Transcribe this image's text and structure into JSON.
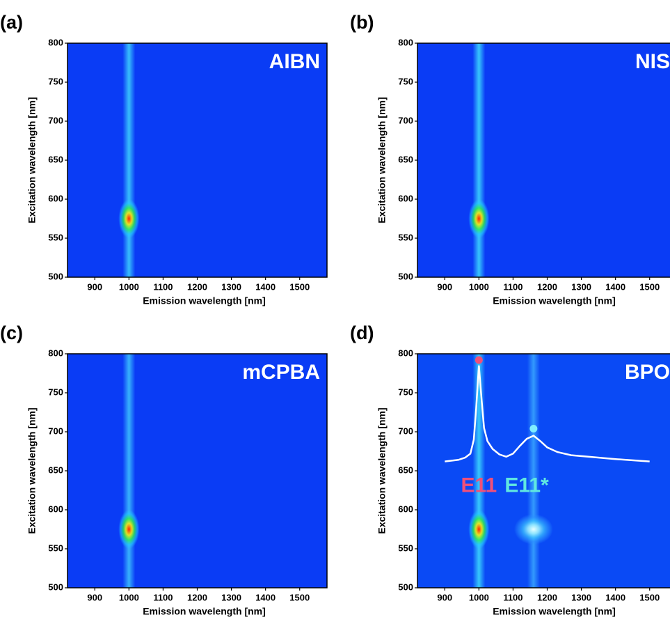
{
  "chart_data": [
    {
      "type": "heatmap",
      "panel_label": "(a)",
      "title": "AIBN",
      "xlabel": "Emission wavelength [nm]",
      "ylabel": "Excitation wavelength [nm]",
      "xlim": [
        820,
        1580
      ],
      "ylim": [
        500,
        800
      ],
      "xticks": [
        900,
        1000,
        1100,
        1200,
        1300,
        1400,
        1500
      ],
      "yticks": [
        500,
        550,
        600,
        650,
        700,
        750,
        800
      ],
      "background": "#0a3cf5",
      "streaks": [
        {
          "x": 1000,
          "color": "#3fd6ff"
        }
      ],
      "peaks": [
        {
          "x": 1000,
          "y": 575,
          "colors": [
            "#ff1a00",
            "#ffee00",
            "#30ff30",
            "#20d0ff"
          ]
        }
      ]
    },
    {
      "type": "heatmap",
      "panel_label": "(b)",
      "title": "NIS",
      "xlabel": "Emission wavelength [nm]",
      "ylabel": "Excitation wavelength [nm]",
      "xlim": [
        820,
        1580
      ],
      "ylim": [
        500,
        800
      ],
      "xticks": [
        900,
        1000,
        1100,
        1200,
        1300,
        1400,
        1500
      ],
      "yticks": [
        500,
        550,
        600,
        650,
        700,
        750,
        800
      ],
      "background": "#0a3cf5",
      "streaks": [
        {
          "x": 1000,
          "color": "#3fe0ff"
        }
      ],
      "peaks": [
        {
          "x": 1000,
          "y": 575,
          "colors": [
            "#ff1a00",
            "#ffee00",
            "#30ff30",
            "#20d0ff"
          ]
        }
      ]
    },
    {
      "type": "heatmap",
      "panel_label": "(c)",
      "title": "mCPBA",
      "xlabel": "Emission wavelength [nm]",
      "ylabel": "Excitation wavelength [nm]",
      "xlim": [
        820,
        1580
      ],
      "ylim": [
        500,
        800
      ],
      "xticks": [
        900,
        1000,
        1100,
        1200,
        1300,
        1400,
        1500
      ],
      "yticks": [
        500,
        550,
        600,
        650,
        700,
        750,
        800
      ],
      "background": "#0a3cf5",
      "streaks": [
        {
          "x": 1000,
          "color": "#3fc8ff"
        }
      ],
      "peaks": [
        {
          "x": 1000,
          "y": 575,
          "colors": [
            "#ff1a00",
            "#ffee00",
            "#30ff30",
            "#20d0ff"
          ]
        }
      ]
    },
    {
      "type": "heatmap",
      "panel_label": "(d)",
      "title": "BPO",
      "xlabel": "Emission wavelength [nm]",
      "ylabel": "Excitation wavelength [nm]",
      "xlim": [
        820,
        1580
      ],
      "ylim": [
        500,
        800
      ],
      "xticks": [
        900,
        1000,
        1100,
        1200,
        1300,
        1400,
        1500
      ],
      "yticks": [
        500,
        550,
        600,
        650,
        700,
        750,
        800
      ],
      "background": "#0a4af5",
      "streaks": [
        {
          "x": 1000,
          "color": "#3fe0ff"
        },
        {
          "x": 1160,
          "color": "#3aa8ff"
        }
      ],
      "peaks": [
        {
          "x": 1000,
          "y": 575,
          "colors": [
            "#ff1a00",
            "#ffee00",
            "#30ff30",
            "#20d0ff"
          ]
        },
        {
          "x": 1160,
          "y": 575,
          "colors": [
            "#e8ffff",
            "#a0f4ff",
            "#40c8ff",
            "#2a90ff"
          ]
        }
      ],
      "spectrum": {
        "color": "#ffffff",
        "x": [
          900,
          940,
          960,
          975,
          985,
          992,
          1000,
          1008,
          1015,
          1025,
          1040,
          1060,
          1080,
          1100,
          1120,
          1140,
          1160,
          1180,
          1200,
          1230,
          1270,
          1320,
          1400,
          1500
        ],
        "y": [
          662,
          664,
          667,
          672,
          690,
          730,
          785,
          740,
          705,
          688,
          678,
          671,
          668,
          672,
          682,
          691,
          695,
          688,
          680,
          674,
          670,
          668,
          665,
          662
        ]
      },
      "markers": [
        {
          "x": 1000,
          "y": 792,
          "color": "#f0507a"
        },
        {
          "x": 1160,
          "y": 704,
          "color": "#80eeff"
        }
      ],
      "annotations": [
        {
          "text": "E11",
          "x": 1000,
          "y": 630,
          "color": "#f0507a"
        },
        {
          "text": "E11*",
          "x": 1140,
          "y": 630,
          "color": "#60e8e0"
        }
      ]
    }
  ]
}
